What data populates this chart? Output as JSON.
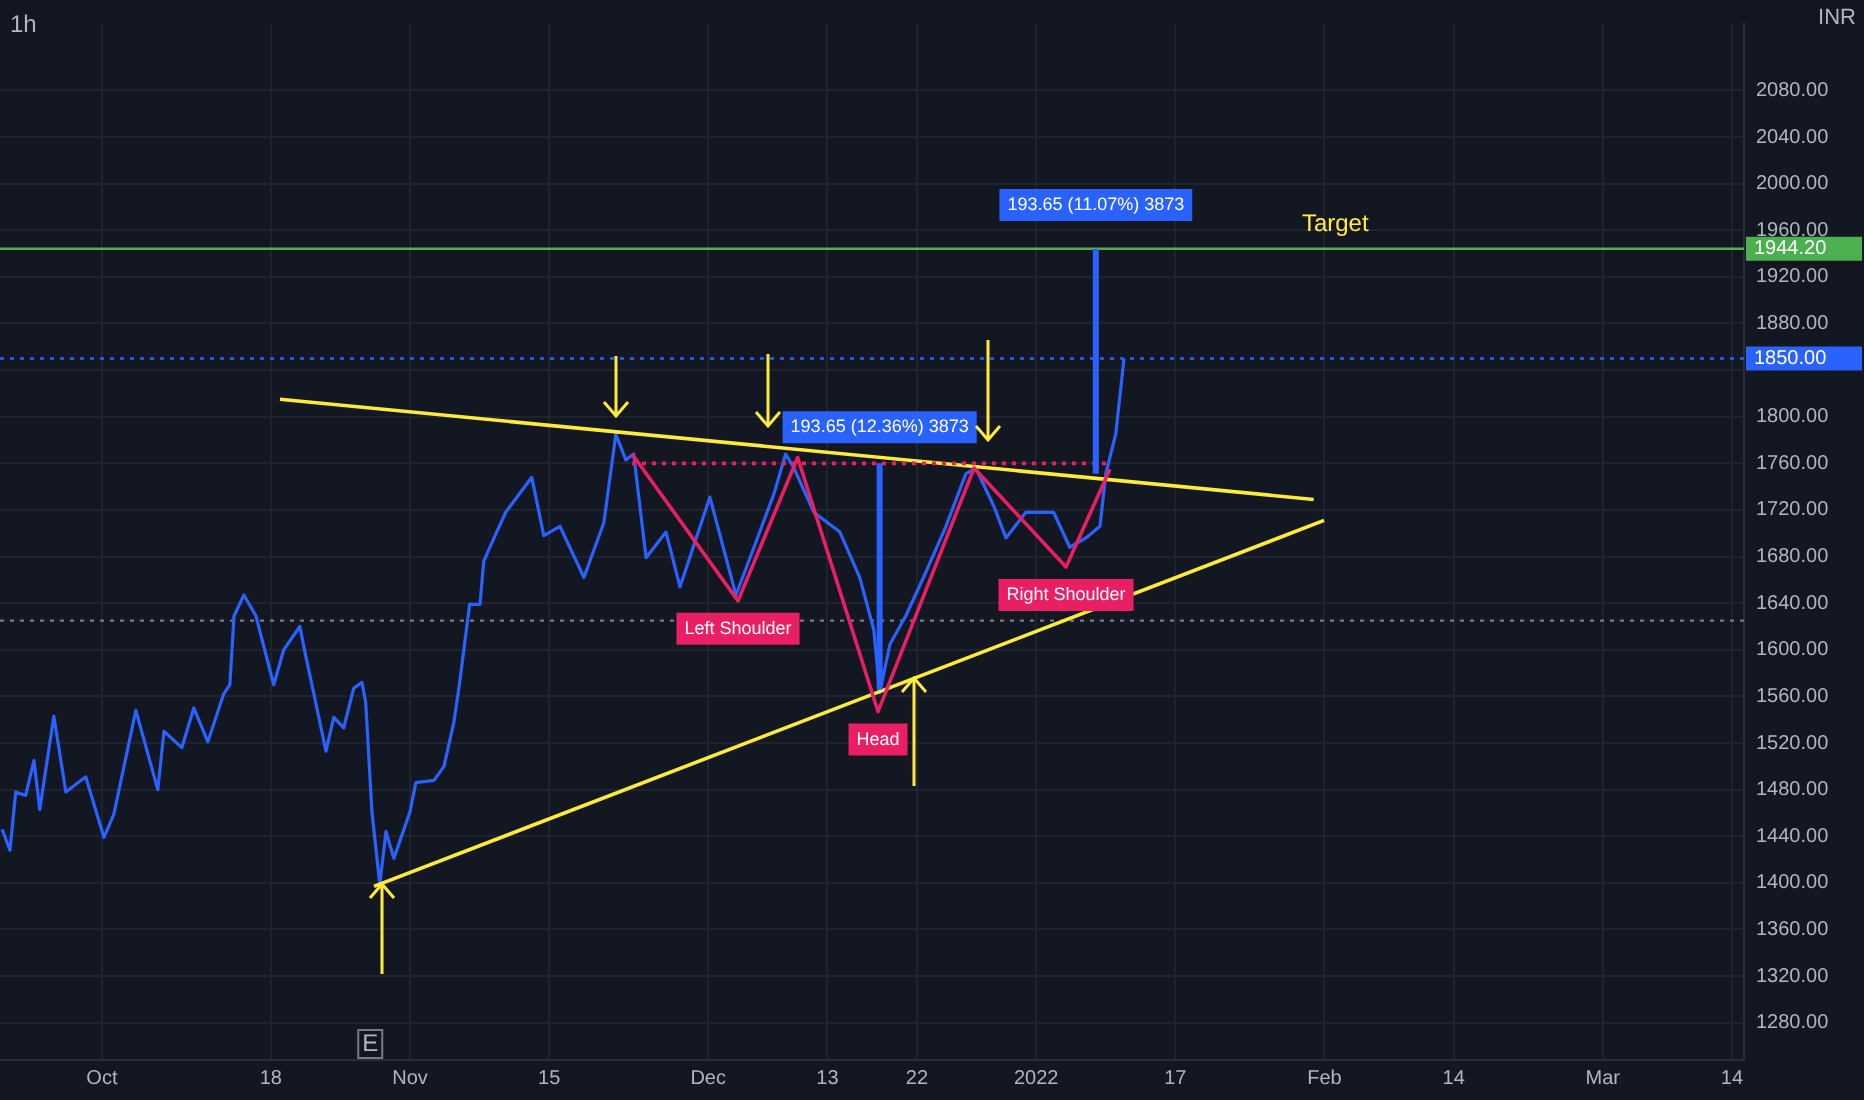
{
  "chart_data": {
    "type": "line",
    "title": "1h",
    "ylabel": "INR",
    "xlim": [
      "2021-09-20T18:00",
      "2022-03-15T05:00"
    ],
    "xticks": [
      {
        "value": "2021-10-01",
        "label": "Oct"
      },
      {
        "value": "2021-10-18",
        "label": "18"
      },
      {
        "value": "2021-11-01",
        "label": "Nov"
      },
      {
        "value": "2021-11-15",
        "label": "15"
      },
      {
        "value": "2021-12-01",
        "label": "Dec"
      },
      {
        "value": "2021-12-13",
        "label": "13"
      },
      {
        "value": "2021-12-22",
        "label": "22"
      },
      {
        "value": "2022-01-03",
        "label": "2022"
      },
      {
        "value": "2022-01-17",
        "label": "17"
      },
      {
        "value": "2022-02-01",
        "label": "Feb"
      },
      {
        "value": "2022-02-14",
        "label": "14"
      },
      {
        "value": "2022-03-01",
        "label": "Mar"
      },
      {
        "value": "2022-03-14",
        "label": "14"
      }
    ],
    "ylim": [
      1248,
      2137
    ],
    "yticks": [
      {
        "value": 1280,
        "label": "1280.00"
      },
      {
        "value": 1320,
        "label": "1320.00"
      },
      {
        "value": 1360,
        "label": "1360.00"
      },
      {
        "value": 1400,
        "label": "1400.00"
      },
      {
        "value": 1440,
        "label": "1440.00"
      },
      {
        "value": 1480,
        "label": "1480.00"
      },
      {
        "value": 1520,
        "label": "1520.00"
      },
      {
        "value": 1560,
        "label": "1560.00"
      },
      {
        "value": 1600,
        "label": "1600.00"
      },
      {
        "value": 1640,
        "label": "1640.00"
      },
      {
        "value": 1680,
        "label": "1680.00"
      },
      {
        "value": 1720,
        "label": "1720.00"
      },
      {
        "value": 1760,
        "label": "1760.00"
      },
      {
        "value": 1800,
        "label": "1800.00"
      },
      {
        "value": 1840,
        "label": null
      },
      {
        "value": 1880,
        "label": "1880.00"
      },
      {
        "value": 1920,
        "label": "1920.00"
      },
      {
        "value": 1960,
        "label": "1960.00"
      },
      {
        "value": 2000,
        "label": "2000.00"
      },
      {
        "value": 2040,
        "label": "2040.00"
      },
      {
        "value": 2080,
        "label": "2080.00"
      }
    ],
    "grid": true,
    "legend": false,
    "marker": "none",
    "series": [
      {
        "type": "line",
        "color": "#2962ff",
        "x": [
          "2021-09-20T23:00",
          "2021-09-21T18:00",
          "2021-09-22T08:00",
          "2021-09-23T08:00",
          "2021-09-24T04:00",
          "2021-09-24T18:00",
          "2021-09-26T04:00",
          "2021-09-27T09:00",
          "2021-09-29T09:00",
          "2021-10-01T05:00",
          "2021-10-02T05:00",
          "2021-10-04T10:00",
          "2021-10-06T15:00",
          "2021-10-07T06:00",
          "2021-10-09T01:00",
          "2021-10-10T06:00",
          "2021-10-11T16:00",
          "2021-10-13T06:00",
          "2021-10-13T21:00",
          "2021-10-14T07:00",
          "2021-10-15T07:00",
          "2021-10-16T12:00",
          "2021-10-18T07:00",
          "2021-10-19T07:00",
          "2021-10-20T22:00",
          "2021-10-21T12:00",
          "2021-10-22T08:00",
          "2021-10-23T13:00",
          "2021-10-24T08:00",
          "2021-10-25T08:00",
          "2021-10-26T08:00",
          "2021-10-27T04:00",
          "2021-10-27T13:00",
          "2021-10-28T04:00",
          "2021-10-28T23:00",
          "2021-10-29T14:00",
          "2021-10-30T09:00",
          "2021-11-01T00:00",
          "2021-11-01T14:00",
          "2021-11-03T10:00",
          "2021-11-04T10:00",
          "2021-11-05T10:00",
          "2021-11-06T00:00",
          "2021-11-06T10:00",
          "2021-11-07T00:00",
          "2021-11-08T01:00",
          "2021-11-08T10:00",
          "2021-11-09T11:00",
          "2021-11-10T15:00",
          "2021-11-13T06:00",
          "2021-11-14T11:00",
          "2021-11-16T02:00",
          "2021-11-18T12:00",
          "2021-11-20T12:00",
          "2021-11-21T17:00",
          "2021-11-22T17:00",
          "2021-11-23T12:00",
          "2021-11-24T18:00",
          "2021-11-26T18:00",
          "2021-11-28T04:00",
          "2021-12-01T04:00",
          "2021-12-03T19:00",
          "2021-12-05T05:00",
          "2021-12-07T15:00",
          "2021-12-08T19:00",
          "2021-12-09T15:00",
          "2021-12-11T15:00",
          "2021-12-14T06:00",
          "2021-12-16T06:00",
          "2021-12-17T16:00",
          "2021-12-18T06:00",
          "2021-12-19T07:00",
          "2021-12-20T21:00",
          "2021-12-22T22:00",
          "2021-12-24T22:00",
          "2021-12-26T22:00",
          "2021-12-27T22:00",
          "2021-12-29T18:00",
          "2021-12-30T23:00",
          "2022-01-01T23:00",
          "2022-01-04T18:00",
          "2022-01-06T09:00",
          "2022-01-08T00:00",
          "2022-01-09T10:00",
          "2022-01-10T00:00",
          "2022-01-11T00:00",
          "2022-01-11T20:00"
        ],
        "values": [
          1446,
          1428,
          1478,
          1475,
          1505,
          1463,
          1543,
          1478,
          1491,
          1439,
          1459,
          1548,
          1480,
          1530,
          1516,
          1550,
          1521,
          1562,
          1570,
          1629,
          1647,
          1629,
          1570,
          1600,
          1620,
          1595,
          1562,
          1513,
          1542,
          1533,
          1567,
          1572,
          1555,
          1461,
          1399,
          1444,
          1421,
          1461,
          1486,
          1488,
          1500,
          1538,
          1572,
          1600,
          1639,
          1639,
          1676,
          1696,
          1718,
          1748,
          1698,
          1706,
          1662,
          1709,
          1785,
          1763,
          1768,
          1679,
          1701,
          1654,
          1731,
          1647,
          1679,
          1734,
          1768,
          1756,
          1718,
          1701,
          1662,
          1617,
          1563,
          1605,
          1629,
          1667,
          1706,
          1751,
          1756,
          1723,
          1696,
          1718,
          1718,
          1688,
          1696,
          1706,
          1751,
          1785,
          1850
        ]
      },
      {
        "type": "line",
        "color": "#ffeb3b",
        "x": [
          "2021-10-18T22:00",
          "2022-01-30T22:00"
        ],
        "values": [
          1815,
          1729
        ]
      },
      {
        "type": "line",
        "color": "#ffeb3b",
        "x": [
          "2021-10-28T09:00",
          "2022-01-31T23:00"
        ],
        "values": [
          1397,
          1711
        ]
      },
      {
        "type": "line",
        "color": "#e91e63",
        "x": [
          "2021-11-23T08:00",
          "2021-12-04T00:00",
          "2021-12-10T00:00",
          "2021-12-18T02:00",
          "2021-12-27T18:00",
          "2022-01-06T00:00",
          "2022-01-10T10:00"
        ],
        "values": [
          1768,
          1642,
          1765,
          1547,
          1756,
          1671,
          1755
        ]
      },
      {
        "type": "line",
        "color": "#e91e63",
        "line_style": "dotted",
        "x": [
          "2021-11-23T08:00",
          "2022-01-10T10:00"
        ],
        "values": [
          1760,
          1760
        ]
      },
      {
        "type": "line",
        "color": "#2962ff",
        "x": [
          "2021-12-18T06:00",
          "2021-12-18T06:00"
        ],
        "values": [
          1566,
          1760
        ]
      },
      {
        "type": "line",
        "color": "#2962ff",
        "x": [
          "2022-01-09T00:00",
          "2022-01-09T00:00"
        ],
        "values": [
          1751,
          1944
        ]
      }
    ],
    "ref_lines": [
      {
        "axis": "y",
        "value": 1944.2,
        "label": "1944.20",
        "color": "#4caf50"
      },
      {
        "axis": "y",
        "value": 1850,
        "label": "1850.00",
        "color": "#2962ff",
        "line_style": "dotted"
      },
      {
        "axis": "y",
        "value": 1625,
        "color": "#787b86",
        "line_style": "dotted"
      }
    ],
    "annotations": [
      {
        "text": "Left Shoulder",
        "x": "2021-12-04T00:00",
        "y": 1642
      },
      {
        "text": "Head",
        "x": "2021-12-18T02:00",
        "y": 1547
      },
      {
        "text": "Right Shoulder",
        "x": "2022-01-06T00:00",
        "y": 1671
      },
      {
        "text": "193.65 (12.36%) 3873",
        "x": "2021-12-18T06:00",
        "y": 1760
      },
      {
        "text": "193.65 (11.07%) 3873",
        "x": "2022-01-09T00:00",
        "y": 1944
      },
      {
        "text": "Target",
        "x": "2022-02-02T02:00",
        "y": 1944.2
      },
      {
        "text": "E",
        "x": "2021-10-28T00:00"
      }
    ]
  }
}
